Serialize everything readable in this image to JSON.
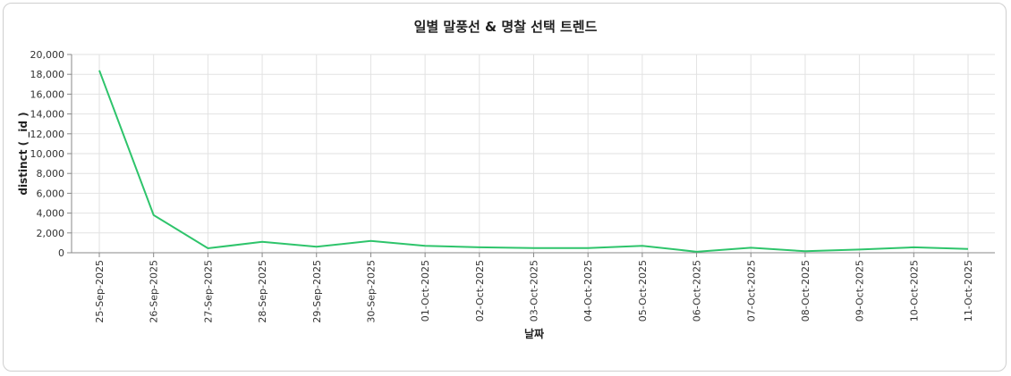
{
  "chart_data": {
    "type": "line",
    "title": "일별 말풍선 & 명찰 선택 트렌드",
    "xlabel": "날짜",
    "ylabel": "distinct ( _id )",
    "categories": [
      "25-Sep-2025",
      "26-Sep-2025",
      "27-Sep-2025",
      "28-Sep-2025",
      "29-Sep-2025",
      "30-Sep-2025",
      "01-Oct-2025",
      "02-Oct-2025",
      "03-Oct-2025",
      "04-Oct-2025",
      "05-Oct-2025",
      "06-Oct-2025",
      "07-Oct-2025",
      "08-Oct-2025",
      "09-Oct-2025",
      "10-Oct-2025",
      "11-Oct-2025"
    ],
    "series": [
      {
        "values": [
          18400,
          3800,
          450,
          1100,
          600,
          1200,
          700,
          550,
          480,
          480,
          700,
          100,
          500,
          150,
          320,
          550,
          380
        ]
      }
    ],
    "ylim": [
      0,
      20000
    ],
    "yticks": [
      "0",
      "2,000",
      "4,000",
      "6,000",
      "8,000",
      "10,000",
      "12,000",
      "14,000",
      "16,000",
      "18,000",
      "20,000"
    ],
    "grid": true,
    "line_color": "#2ec46b"
  }
}
